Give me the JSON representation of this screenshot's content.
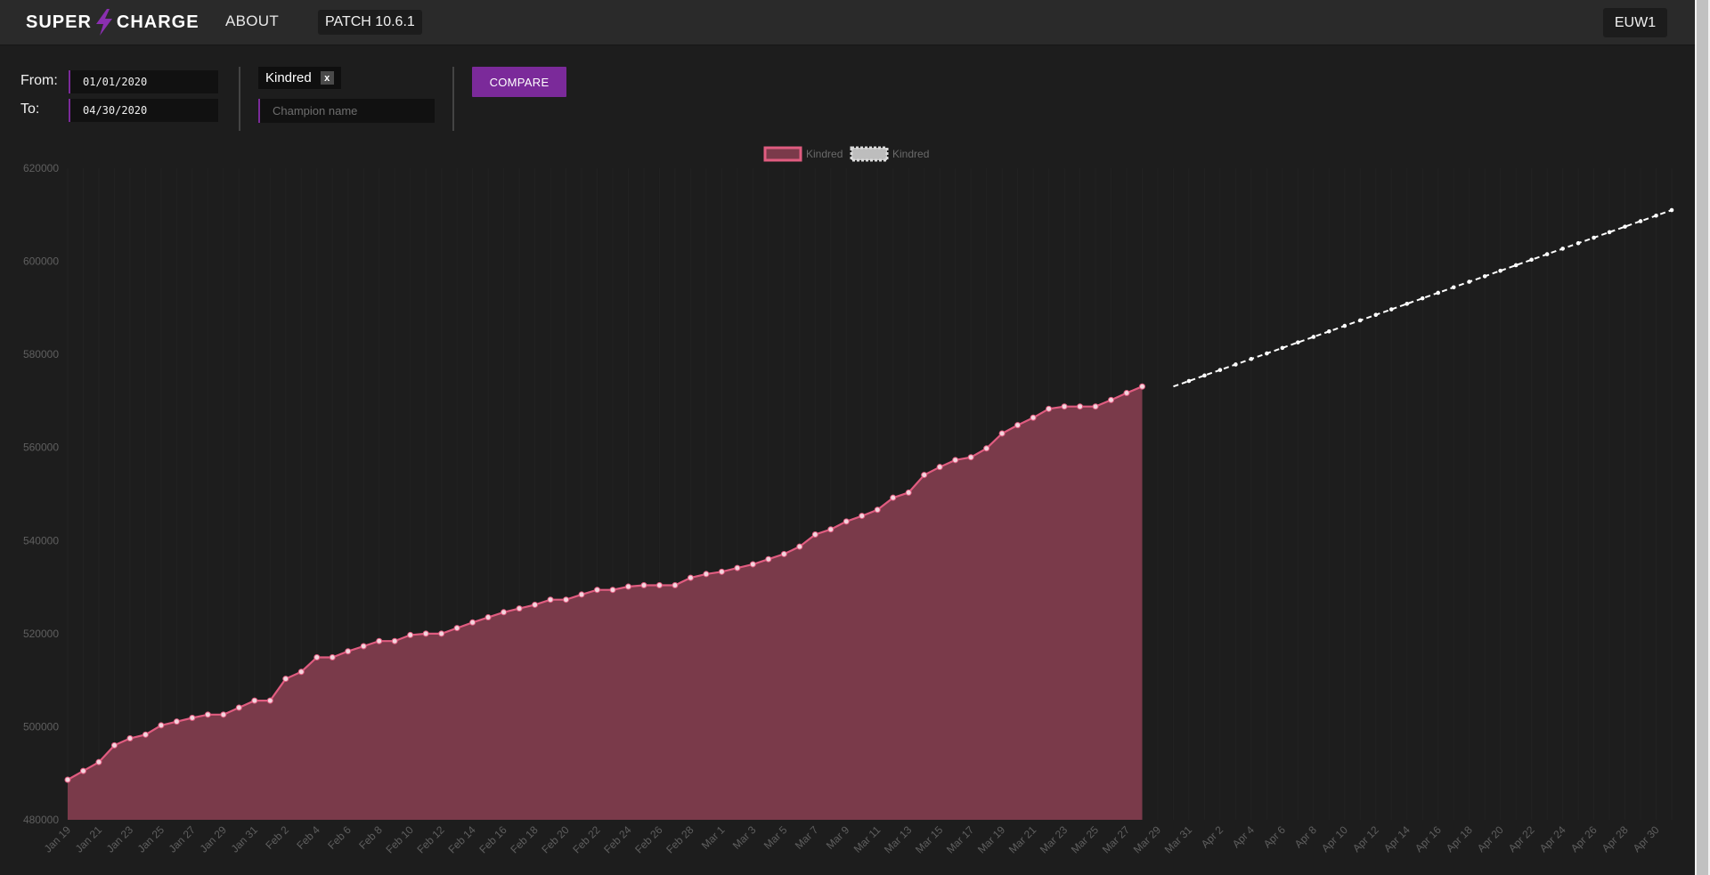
{
  "nav": {
    "logo_left": "SUPER",
    "logo_right": "CHARGE",
    "about": "ABOUT",
    "patch": "PATCH 10.6.1",
    "region": "EUW1"
  },
  "controls": {
    "from_label": "From:",
    "to_label": "To:",
    "from_value": "01/01/2020",
    "to_value": "04/30/2020",
    "selected_champion": "Kindred",
    "remove_label": "x",
    "champion_placeholder": "Champion name",
    "compare_label": "COMPARE"
  },
  "chart_data": {
    "type": "area",
    "legend": [
      {
        "name": "Kindred",
        "style": "actual"
      },
      {
        "name": "Kindred",
        "style": "forecast"
      }
    ],
    "x_tick_labels": [
      "Jan 19",
      "Jan 21",
      "Jan 23",
      "Jan 25",
      "Jan 27",
      "Jan 29",
      "Jan 31",
      "Feb 2",
      "Feb 4",
      "Feb 6",
      "Feb 8",
      "Feb 10",
      "Feb 12",
      "Feb 14",
      "Feb 16",
      "Feb 18",
      "Feb 20",
      "Feb 22",
      "Feb 24",
      "Feb 26",
      "Feb 28",
      "Mar 1",
      "Mar 3",
      "Mar 5",
      "Mar 7",
      "Mar 9",
      "Mar 11",
      "Mar 13",
      "Mar 15",
      "Mar 17",
      "Mar 19",
      "Mar 21",
      "Mar 23",
      "Mar 25",
      "Mar 27",
      "Mar 29",
      "Mar 31",
      "Apr 2",
      "Apr 4",
      "Apr 6",
      "Apr 8",
      "Apr 10",
      "Apr 12",
      "Apr 14",
      "Apr 16",
      "Apr 18",
      "Apr 20",
      "Apr 22",
      "Apr 24",
      "Apr 26",
      "Apr 28",
      "Apr 30"
    ],
    "y_ticks": [
      480000,
      500000,
      520000,
      540000,
      560000,
      580000,
      600000,
      620000
    ],
    "ylim": [
      480000,
      620000
    ],
    "x_start": "Jan 19",
    "x_end": "May 1",
    "series": [
      {
        "name": "Kindred",
        "style": "actual",
        "color": "#e05c80",
        "fill": "#7a3a4a",
        "values": [
          488600,
          490500,
          492400,
          496000,
          497500,
          498300,
          500300,
          501100,
          501900,
          502600,
          502600,
          504100,
          505600,
          505600,
          510300,
          511800,
          514900,
          514900,
          516200,
          517300,
          518400,
          518400,
          519700,
          520000,
          520000,
          521200,
          522400,
          523500,
          524600,
          525400,
          526200,
          527300,
          527300,
          528400,
          529400,
          529400,
          530100,
          530400,
          530400,
          530400,
          532000,
          532800,
          533300,
          534100,
          534900,
          536000,
          537100,
          538700,
          541300,
          542400,
          544100,
          545300,
          546600,
          549200,
          550300,
          554100,
          555800,
          557300,
          557900,
          559800,
          563000,
          564800,
          566400,
          568300,
          568800,
          568800,
          568800,
          570200,
          571700,
          573100
        ]
      },
      {
        "name": "Kindred",
        "style": "forecast",
        "color": "#ffffff",
        "start": "Mar 30",
        "start_value": 573100,
        "end": "May 1",
        "end_value": 611000
      }
    ]
  }
}
